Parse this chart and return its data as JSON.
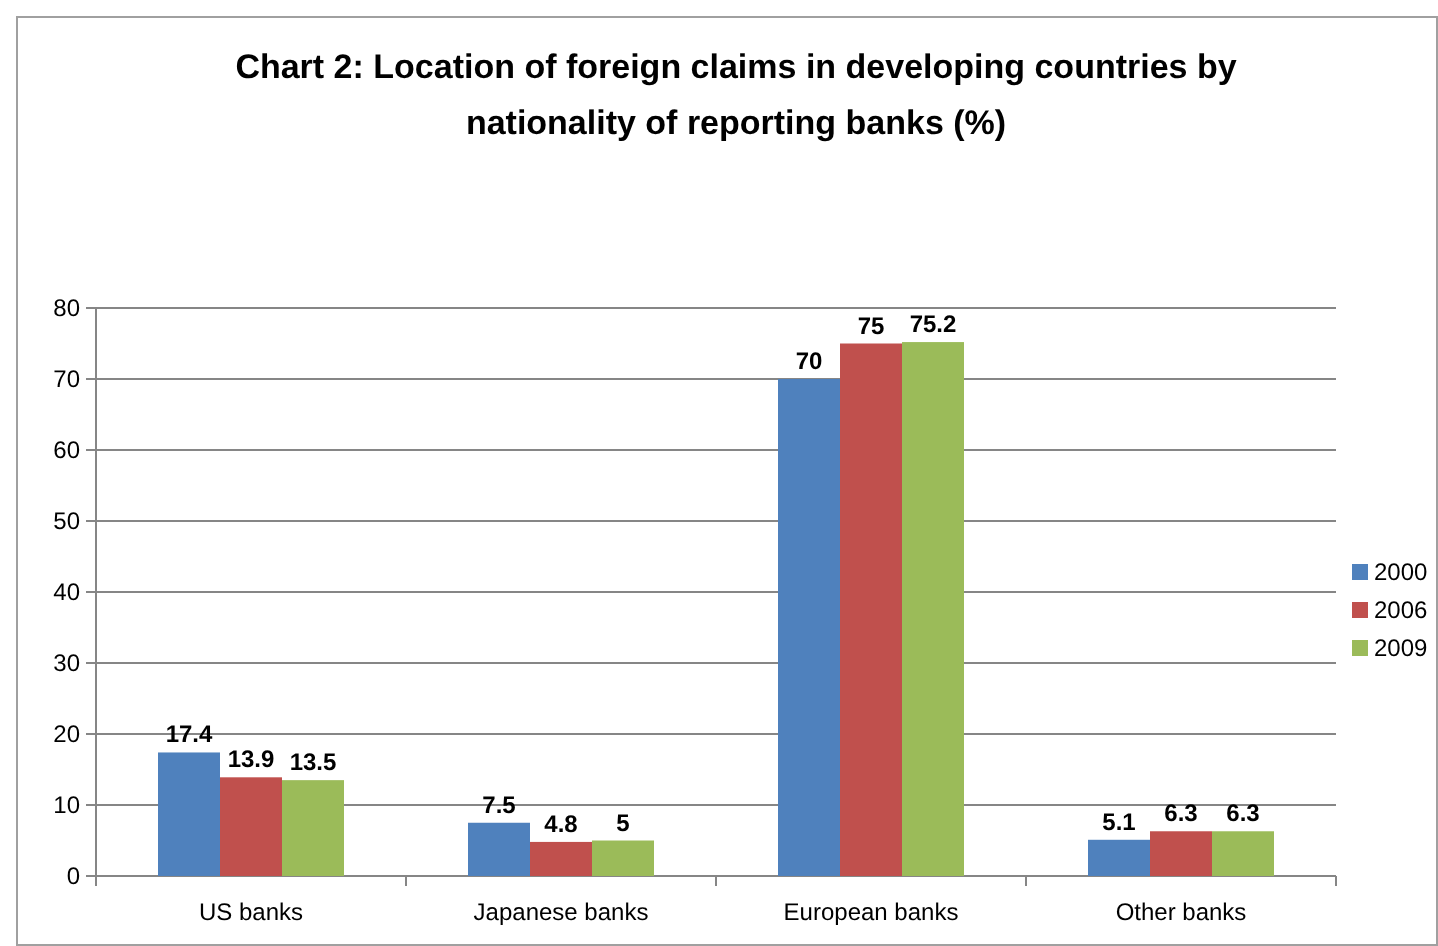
{
  "chart_data": {
    "type": "bar",
    "title": "Chart 2: Location of foreign claims in developing countries by nationality of reporting banks (%)",
    "categories": [
      "US banks",
      "Japanese banks",
      "European banks",
      "Other banks"
    ],
    "series": [
      {
        "name": "2000",
        "color": "#4f81bd",
        "values": [
          17.4,
          7.5,
          70,
          5.1
        ]
      },
      {
        "name": "2006",
        "color": "#c0504d",
        "values": [
          13.9,
          4.8,
          75,
          6.3
        ]
      },
      {
        "name": "2009",
        "color": "#9bbb59",
        "values": [
          13.5,
          5,
          75.2,
          6.3
        ]
      }
    ],
    "ylim": [
      0,
      80
    ],
    "yticks": [
      0,
      10,
      20,
      30,
      40,
      50,
      60,
      70,
      80
    ],
    "grid": "y",
    "legend": "right",
    "data_labels": true
  }
}
